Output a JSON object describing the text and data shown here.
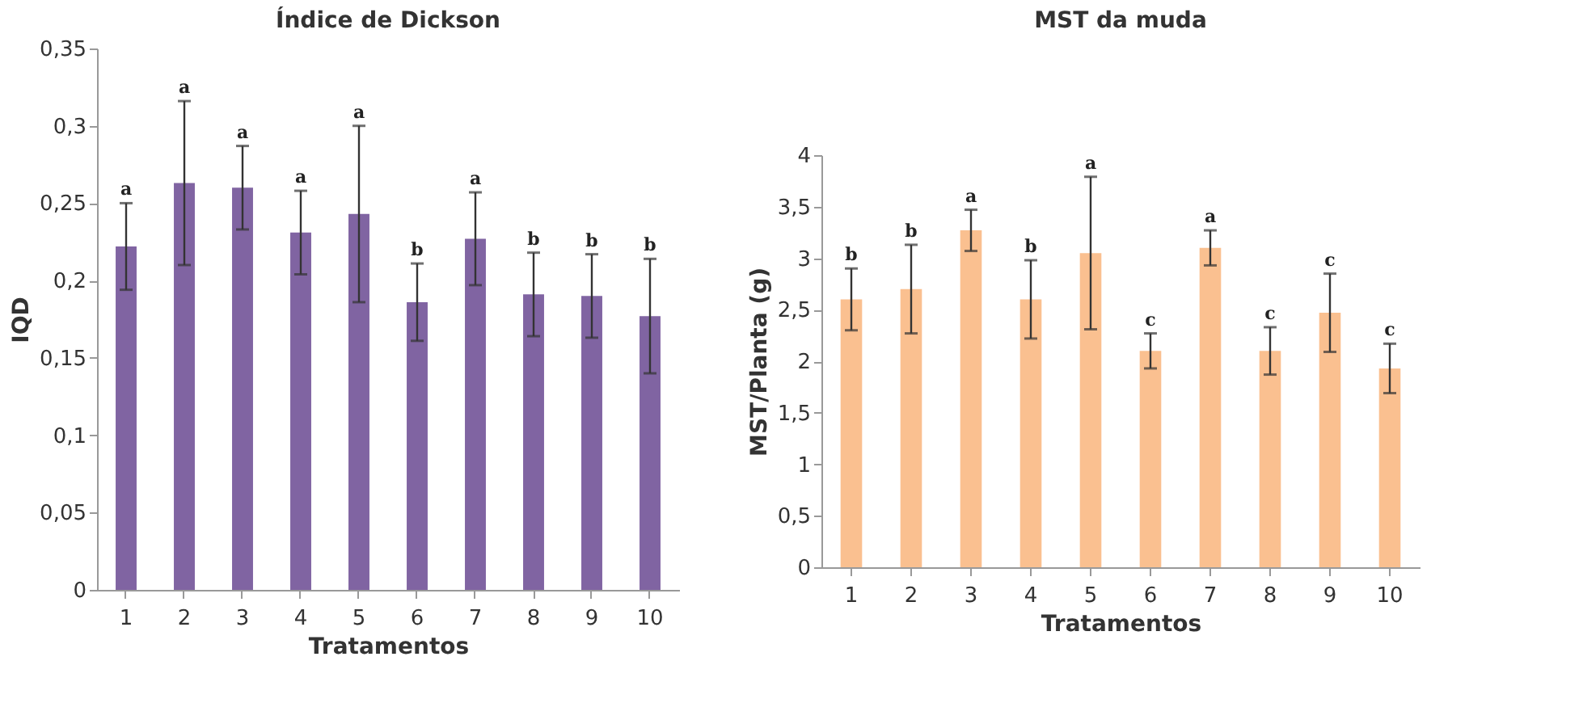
{
  "chart_data": [
    {
      "type": "bar",
      "title": "Índice de Dickson",
      "xlabel": "Tratamentos",
      "ylabel": "IQD",
      "categories": [
        "1",
        "2",
        "3",
        "4",
        "5",
        "6",
        "7",
        "8",
        "9",
        "10"
      ],
      "series": [
        {
          "color": "#8064a2",
          "values": [
            0.222,
            0.263,
            0.26,
            0.231,
            0.243,
            0.186,
            0.227,
            0.191,
            0.19,
            0.177
          ],
          "errors": [
            0.028,
            0.053,
            0.027,
            0.027,
            0.057,
            0.025,
            0.03,
            0.027,
            0.027,
            0.037
          ]
        }
      ],
      "ylim": [
        0,
        0.35
      ],
      "yticks": [
        0,
        {
          "value": 0.05,
          "label": "0,05"
        },
        {
          "value": 0.1,
          "label": "0,1"
        },
        {
          "value": 0.15,
          "label": "0,15"
        },
        {
          "value": 0.2,
          "label": "0,2"
        },
        {
          "value": 0.25,
          "label": "0,25"
        },
        {
          "value": 0.3,
          "label": "0,3"
        },
        {
          "value": 0.35,
          "label": "0,35"
        }
      ],
      "grid": false,
      "annotations": [
        "a",
        "a",
        "a",
        "a",
        "a",
        "b",
        "a",
        "b",
        "b",
        "b"
      ]
    },
    {
      "type": "bar",
      "title": "MST da muda",
      "xlabel": "Tratamentos",
      "ylabel": "MST/Planta (g)",
      "categories": [
        "1",
        "2",
        "3",
        "4",
        "5",
        "6",
        "7",
        "8",
        "9",
        "10"
      ],
      "series": [
        {
          "color": "#fac090",
          "values": [
            2.6,
            2.7,
            3.27,
            2.6,
            3.05,
            2.1,
            3.1,
            2.1,
            2.47,
            1.93
          ],
          "errors": [
            0.3,
            0.43,
            0.2,
            0.38,
            0.74,
            0.17,
            0.17,
            0.23,
            0.38,
            0.24
          ]
        }
      ],
      "ylim": [
        0,
        4
      ],
      "yticks": [
        0,
        {
          "value": 0.5,
          "label": "0,5"
        },
        1,
        {
          "value": 1.5,
          "label": "1,5"
        },
        2,
        {
          "value": 2.5,
          "label": "2,5"
        },
        3,
        {
          "value": 3.5,
          "label": "3,5"
        },
        4
      ],
      "grid": false,
      "annotations": [
        "b",
        "b",
        "a",
        "b",
        "a",
        "c",
        "a",
        "c",
        "c",
        "c"
      ]
    }
  ]
}
